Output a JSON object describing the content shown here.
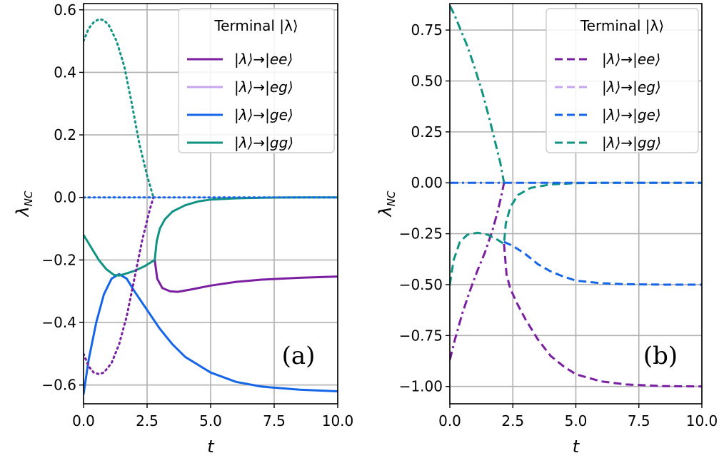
{
  "chart_data": [
    {
      "type": "line",
      "panel_label": "(a)",
      "xlabel": "t",
      "ylabel": "λNC",
      "xlim": [
        0,
        10
      ],
      "ylim": [
        -0.66,
        0.62
      ],
      "xticks": [
        0,
        2.5,
        5,
        7.5,
        10
      ],
      "xtick_labels": [
        "0.0",
        "2.5",
        "5.0",
        "7.5",
        "10.0"
      ],
      "yticks": [
        0.6,
        0.4,
        0.2,
        0.0,
        -0.2,
        -0.4,
        -0.6
      ],
      "ytick_labels": [
        "0.6",
        "0.4",
        "0.2",
        "0.0",
        "−0.2",
        "−0.4",
        "−0.6"
      ],
      "grid": true,
      "legend": {
        "title": "Terminal |λ⟩",
        "position": "top-right",
        "entries": [
          "|λ⟩→|ee⟩",
          "|λ⟩→|eg⟩",
          "|λ⟩→|ge⟩",
          "|λ⟩→|gg⟩"
        ],
        "style": "solid"
      },
      "series": [
        {
          "name": "ee solid",
          "color": "#7a1fa2",
          "style": "solid",
          "points": [
            [
              2.8,
              -0.2
            ],
            [
              2.9,
              -0.26
            ],
            [
              3.1,
              -0.29
            ],
            [
              3.4,
              -0.3
            ],
            [
              3.7,
              -0.302
            ],
            [
              4.2,
              -0.295
            ],
            [
              5,
              -0.282
            ],
            [
              6,
              -0.27
            ],
            [
              7,
              -0.263
            ],
            [
              8.5,
              -0.257
            ],
            [
              10,
              -0.253
            ]
          ]
        },
        {
          "name": "ge solid",
          "color": "#1565e8",
          "style": "solid",
          "points": [
            [
              0,
              -0.63
            ],
            [
              0.2,
              -0.52
            ],
            [
              0.5,
              -0.4
            ],
            [
              0.8,
              -0.31
            ],
            [
              1.1,
              -0.26
            ],
            [
              1.4,
              -0.245
            ],
            [
              1.7,
              -0.26
            ],
            [
              2,
              -0.3
            ],
            [
              2.5,
              -0.36
            ],
            [
              3,
              -0.42
            ],
            [
              3.5,
              -0.47
            ],
            [
              4,
              -0.51
            ],
            [
              5,
              -0.56
            ],
            [
              6,
              -0.59
            ],
            [
              7,
              -0.605
            ],
            [
              8.5,
              -0.615
            ],
            [
              10,
              -0.62
            ]
          ]
        },
        {
          "name": "gg solid left",
          "color": "#119383",
          "style": "solid",
          "points": [
            [
              0,
              -0.12
            ],
            [
              0.3,
              -0.16
            ],
            [
              0.6,
              -0.2
            ],
            [
              0.9,
              -0.23
            ],
            [
              1.2,
              -0.248
            ],
            [
              1.4,
              -0.25
            ],
            [
              1.7,
              -0.243
            ],
            [
              2,
              -0.235
            ],
            [
              2.4,
              -0.22
            ],
            [
              2.8,
              -0.2
            ]
          ]
        },
        {
          "name": "gg solid right",
          "color": "#119383",
          "style": "solid",
          "points": [
            [
              2.8,
              -0.2
            ],
            [
              2.88,
              -0.14
            ],
            [
              3.0,
              -0.1
            ],
            [
              3.2,
              -0.07
            ],
            [
              3.5,
              -0.045
            ],
            [
              4,
              -0.025
            ],
            [
              4.5,
              -0.013
            ],
            [
              5,
              -0.007
            ],
            [
              6,
              -0.003
            ],
            [
              7,
              -0.001
            ],
            [
              8.5,
              0
            ],
            [
              10,
              0
            ]
          ]
        },
        {
          "name": "gg dotted",
          "color": "#119383",
          "style": "dotted",
          "points": [
            [
              0,
              0.5
            ],
            [
              0.2,
              0.54
            ],
            [
              0.4,
              0.56
            ],
            [
              0.6,
              0.57
            ],
            [
              0.8,
              0.567
            ],
            [
              1,
              0.55
            ],
            [
              1.3,
              0.5
            ],
            [
              1.6,
              0.42
            ],
            [
              1.9,
              0.3
            ],
            [
              2.2,
              0.17
            ],
            [
              2.5,
              0.07
            ],
            [
              2.75,
              0
            ]
          ]
        },
        {
          "name": "ee dotted",
          "color": "#7a1fa2",
          "style": "dotted",
          "points": [
            [
              0,
              -0.5
            ],
            [
              0.2,
              -0.54
            ],
            [
              0.4,
              -0.56
            ],
            [
              0.6,
              -0.565
            ],
            [
              0.8,
              -0.56
            ],
            [
              1.1,
              -0.53
            ],
            [
              1.4,
              -0.47
            ],
            [
              1.7,
              -0.38
            ],
            [
              2,
              -0.26
            ],
            [
              2.3,
              -0.14
            ],
            [
              2.6,
              -0.04
            ],
            [
              2.75,
              0
            ]
          ]
        },
        {
          "name": "ge dotted",
          "color": "#1565e8",
          "style": "dotted",
          "points": [
            [
              0,
              0
            ],
            [
              2.75,
              0
            ]
          ]
        },
        {
          "name": "zero dotted",
          "color": "#1565e8",
          "style": "dotted",
          "points": [
            [
              2.75,
              0
            ],
            [
              10,
              0
            ]
          ]
        }
      ]
    },
    {
      "type": "line",
      "panel_label": "(b)",
      "xlabel": "t",
      "ylabel": "λNC",
      "xlim": [
        0,
        10
      ],
      "ylim": [
        -1.085,
        0.88
      ],
      "xticks": [
        0,
        2.5,
        5,
        7.5,
        10
      ],
      "xtick_labels": [
        "0.0",
        "2.5",
        "5.0",
        "7.5",
        "10.0"
      ],
      "yticks": [
        0.75,
        0.5,
        0.25,
        0.0,
        -0.25,
        -0.5,
        -0.75,
        -1.0
      ],
      "ytick_labels": [
        "0.75",
        "0.50",
        "0.25",
        "0.00",
        "−0.25",
        "−0.50",
        "−0.75",
        "−1.00"
      ],
      "grid": true,
      "legend": {
        "title": "Terminal |λ⟩",
        "position": "top-right",
        "entries": [
          "|λ⟩→|ee⟩",
          "|λ⟩→|eg⟩",
          "|λ⟩→|ge⟩",
          "|λ⟩→|gg⟩"
        ],
        "style": "dashed"
      },
      "series": [
        {
          "name": "gg dashdot",
          "color": "#119383",
          "style": "dashdot",
          "points": [
            [
              0,
              0.87
            ],
            [
              0.2,
              0.82
            ],
            [
              0.4,
              0.76
            ],
            [
              0.7,
              0.67
            ],
            [
              1,
              0.56
            ],
            [
              1.3,
              0.44
            ],
            [
              1.6,
              0.3
            ],
            [
              1.8,
              0.2
            ],
            [
              2,
              0.1
            ],
            [
              2.15,
              0
            ]
          ]
        },
        {
          "name": "ee dashdot",
          "color": "#7a1fa2",
          "style": "dashdot",
          "points": [
            [
              0,
              -0.87
            ],
            [
              0.2,
              -0.77
            ],
            [
              0.5,
              -0.64
            ],
            [
              0.8,
              -0.53
            ],
            [
              1.1,
              -0.43
            ],
            [
              1.4,
              -0.34
            ],
            [
              1.7,
              -0.23
            ],
            [
              1.9,
              -0.14
            ],
            [
              2.05,
              -0.06
            ],
            [
              2.15,
              0
            ]
          ]
        },
        {
          "name": "ge dashdot",
          "color": "#1565e8",
          "style": "dashdot",
          "points": [
            [
              0,
              0
            ],
            [
              2.15,
              0
            ]
          ]
        },
        {
          "name": "gg dashed",
          "color": "#119383",
          "style": "dashed",
          "points": [
            [
              0,
              -0.5
            ],
            [
              0.15,
              -0.38
            ],
            [
              0.4,
              -0.29
            ],
            [
              0.7,
              -0.255
            ],
            [
              1.1,
              -0.245
            ],
            [
              1.5,
              -0.255
            ],
            [
              1.9,
              -0.28
            ],
            [
              2.15,
              -0.3
            ],
            [
              2.22,
              -0.2
            ],
            [
              2.4,
              -0.12
            ],
            [
              2.7,
              -0.06
            ],
            [
              3.2,
              -0.025
            ],
            [
              4,
              -0.008
            ],
            [
              5,
              -0.002
            ],
            [
              6,
              0
            ],
            [
              10,
              0
            ]
          ]
        },
        {
          "name": "ge dashed",
          "color": "#1565e8",
          "style": "dashed",
          "points": [
            [
              2.15,
              -0.29
            ],
            [
              2.5,
              -0.31
            ],
            [
              3,
              -0.35
            ],
            [
              3.5,
              -0.4
            ],
            [
              4,
              -0.435
            ],
            [
              4.5,
              -0.46
            ],
            [
              5,
              -0.48
            ],
            [
              6,
              -0.493
            ],
            [
              7,
              -0.498
            ],
            [
              8.5,
              -0.5
            ],
            [
              10,
              -0.5
            ]
          ]
        },
        {
          "name": "ee dashed",
          "color": "#7a1fa2",
          "style": "dashed",
          "points": [
            [
              2.15,
              -0.3
            ],
            [
              2.25,
              -0.45
            ],
            [
              2.4,
              -0.52
            ],
            [
              2.7,
              -0.6
            ],
            [
              3,
              -0.67
            ],
            [
              3.5,
              -0.77
            ],
            [
              4,
              -0.85
            ],
            [
              4.5,
              -0.9
            ],
            [
              5,
              -0.94
            ],
            [
              6,
              -0.975
            ],
            [
              7,
              -0.99
            ],
            [
              8.5,
              -0.998
            ],
            [
              10,
              -1.0
            ]
          ]
        },
        {
          "name": "zero dashed",
          "color": "#1565e8",
          "style": "dashed",
          "points": [
            [
              2.15,
              0
            ],
            [
              10,
              0
            ]
          ]
        }
      ]
    }
  ],
  "legend_colors": [
    "#7a1fa2",
    "#c9a4ef",
    "#1565e8",
    "#119383"
  ]
}
